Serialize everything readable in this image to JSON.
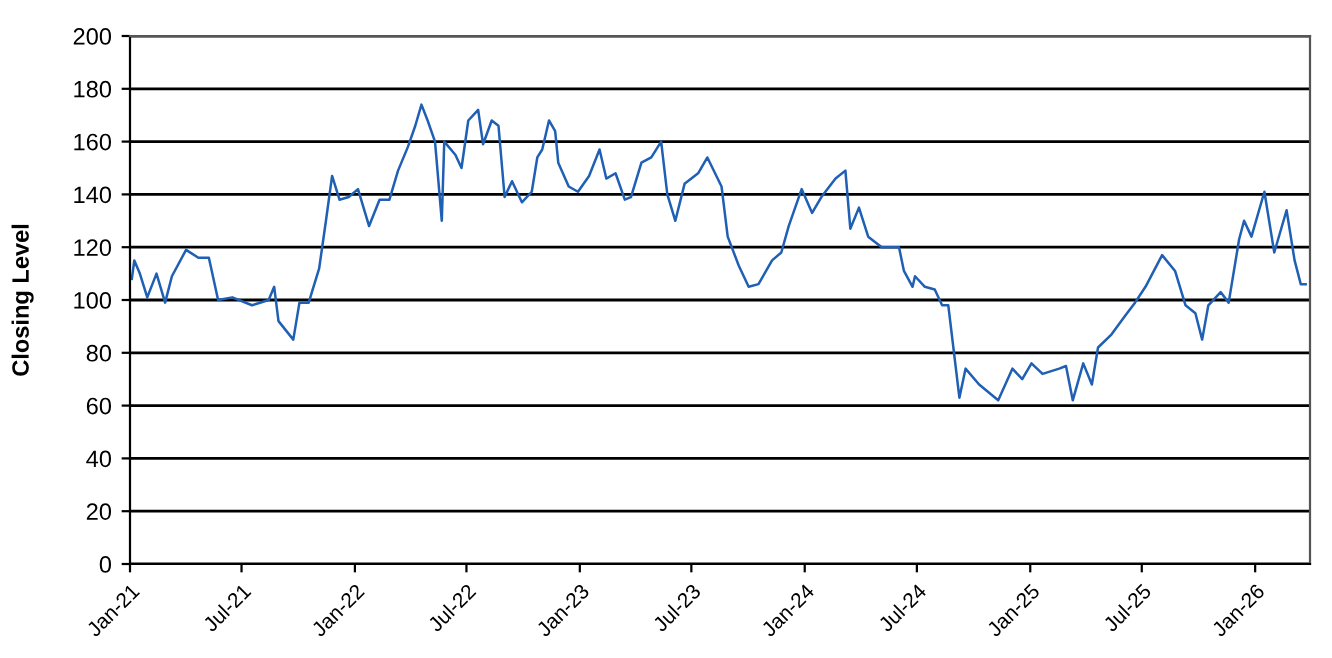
{
  "chart_data": {
    "type": "line",
    "ylabel": "Closing Level",
    "x": [
      "2021-01-04",
      "2021-01-08",
      "2021-01-17",
      "2021-01-29",
      "2021-02-13",
      "2021-02-27",
      "2021-03-10",
      "2021-04-02",
      "2021-04-22",
      "2021-05-09",
      "2021-05-24",
      "2021-06-16",
      "2021-07-18",
      "2021-08-14",
      "2021-08-23",
      "2021-08-30",
      "2021-09-23",
      "2021-10-03",
      "2021-10-18",
      "2021-11-04",
      "2021-11-15",
      "2021-11-25",
      "2021-12-07",
      "2021-12-22",
      "2022-01-06",
      "2022-01-24",
      "2022-02-10",
      "2022-02-26",
      "2022-03-12",
      "2022-03-28",
      "2022-04-09",
      "2022-04-19",
      "2022-04-29",
      "2022-05-11",
      "2022-05-22",
      "2022-05-26",
      "2022-06-13",
      "2022-06-23",
      "2022-07-04",
      "2022-07-20",
      "2022-07-28",
      "2022-08-11",
      "2022-08-22",
      "2022-09-01",
      "2022-09-13",
      "2022-09-29",
      "2022-10-15",
      "2022-10-24",
      "2022-11-01",
      "2022-11-12",
      "2022-11-22",
      "2022-11-27",
      "2022-12-14",
      "2022-12-29",
      "2023-01-16",
      "2023-02-02",
      "2023-02-13",
      "2023-02-28",
      "2023-03-15",
      "2023-03-25",
      "2023-04-11",
      "2023-04-27",
      "2023-05-13",
      "2023-05-23",
      "2023-06-05",
      "2023-06-20",
      "2023-07-12",
      "2023-07-27",
      "2023-08-19",
      "2023-08-29",
      "2023-09-16",
      "2023-10-02",
      "2023-10-18",
      "2023-11-09",
      "2023-11-24",
      "2023-12-06",
      "2023-12-27",
      "2024-01-13",
      "2024-01-28",
      "2024-02-20",
      "2024-03-07",
      "2024-03-15",
      "2024-03-29",
      "2024-04-13",
      "2024-05-05",
      "2024-06-02",
      "2024-06-10",
      "2024-06-24",
      "2024-06-28",
      "2024-07-14",
      "2024-07-30",
      "2024-08-11",
      "2024-08-21",
      "2024-09-08",
      "2024-09-18",
      "2024-10-10",
      "2024-11-10",
      "2024-12-03",
      "2024-12-19",
      "2025-01-03",
      "2025-01-21",
      "2025-02-17",
      "2025-02-28",
      "2025-03-11",
      "2025-03-28",
      "2025-04-11",
      "2025-04-21",
      "2025-05-13",
      "2025-06-04",
      "2025-06-20",
      "2025-07-07",
      "2025-08-03",
      "2025-08-24",
      "2025-09-10",
      "2025-09-26",
      "2025-10-07",
      "2025-10-17",
      "2025-11-06",
      "2025-11-19",
      "2025-12-06",
      "2025-12-14",
      "2025-12-26",
      "2026-01-16",
      "2026-02-01",
      "2026-02-21",
      "2026-03-06",
      "2026-03-16",
      "2026-03-24"
    ],
    "series": [
      {
        "color": "#1f5fb4",
        "values": [
          108,
          115,
          110,
          101,
          110,
          99,
          109,
          119,
          116,
          116,
          100,
          101,
          98,
          100,
          105,
          92,
          85,
          99,
          99,
          112,
          130,
          147,
          138,
          139,
          142,
          128,
          138,
          138,
          149,
          158,
          166,
          174,
          168,
          160,
          130,
          160,
          155,
          150,
          168,
          172,
          159,
          168,
          166,
          139,
          145,
          137,
          141,
          154,
          157,
          168,
          164,
          152,
          143,
          141,
          147,
          157,
          146,
          148,
          138,
          139,
          152,
          154,
          160,
          140,
          130,
          144,
          148,
          154,
          143,
          124,
          113,
          105,
          106,
          115,
          118,
          128,
          142,
          133,
          139,
          146,
          149,
          127,
          135,
          124,
          120,
          120,
          111,
          105,
          109,
          105,
          104,
          98,
          98,
          63,
          74,
          68,
          62,
          74,
          70,
          76,
          72,
          74,
          75,
          62,
          76,
          68,
          82,
          87,
          94,
          99,
          105,
          117,
          111,
          98,
          95,
          85,
          98,
          103,
          99,
          123,
          130,
          124,
          141,
          118,
          134,
          115,
          106,
          106
        ]
      }
    ],
    "xlim": [
      "2021-01-01",
      "2026-03-31"
    ],
    "xticks": [
      {
        "value": "2021-01-01",
        "label": "Jan-21"
      },
      {
        "value": "2021-07-01",
        "label": "Jul-21"
      },
      {
        "value": "2022-01-01",
        "label": "Jan-22"
      },
      {
        "value": "2022-07-01",
        "label": "Jul-22"
      },
      {
        "value": "2023-01-01",
        "label": "Jan-23"
      },
      {
        "value": "2023-07-01",
        "label": "Jul-23"
      },
      {
        "value": "2024-01-01",
        "label": "Jan-24"
      },
      {
        "value": "2024-07-01",
        "label": "Jul-24"
      },
      {
        "value": "2025-01-01",
        "label": "Jan-25"
      },
      {
        "value": "2025-07-01",
        "label": "Jul-25"
      },
      {
        "value": "2026-01-01",
        "label": "Jan-26"
      }
    ],
    "ylim": [
      0,
      200
    ],
    "yticks": [
      0,
      20,
      40,
      60,
      80,
      100,
      120,
      140,
      160,
      180,
      200
    ],
    "grid": "y",
    "marker": "none",
    "line_style": "solid",
    "legend": false
  }
}
